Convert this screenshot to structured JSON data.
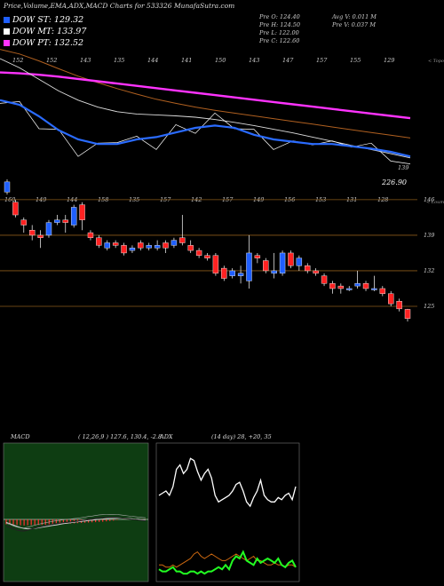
{
  "header": {
    "title": "Price,Volume,EMA,ADX,MACD Charts for 533326  MunafaSutra.com",
    "legend": [
      {
        "label": "DOW ST: 129.32",
        "color": "#1f5fff"
      },
      {
        "label": "DOW MT: 133.97",
        "color": "#ffffff"
      },
      {
        "label": "DOW PT: 132.52",
        "color": "#ff33ff"
      }
    ],
    "stats_col1": [
      "Pre  O: 124.40",
      "Pre  H: 124.50",
      "Pre  L: 122.00",
      "Pre  C: 122.60"
    ],
    "stats_col2": [
      "Avg V: 0.011 M",
      "Pre  V: 0.037 M"
    ]
  },
  "chart_data": [
    {
      "type": "line",
      "name": "ema-panel",
      "top_labels": [
        "152",
        "152",
        "143",
        "135",
        "144",
        "141",
        "150",
        "143",
        "147",
        "157",
        "155",
        "129"
      ],
      "corner_label": "< Topo",
      "bottom_labels": [
        "139",
        "226.90"
      ],
      "ema_magenta": [
        147,
        146.8,
        146.5,
        146.1,
        145.6,
        145.1,
        144.6,
        144.1,
        143.6,
        143.1,
        142.6,
        142.1,
        141.6,
        141.1,
        140.6,
        140.1,
        139.6,
        139.1,
        138.6,
        138.1,
        137.6,
        137.1
      ],
      "ema_brown": [
        152,
        151,
        149.5,
        147.8,
        146.2,
        144.8,
        143.5,
        142.3,
        141.2,
        140.3,
        139.5,
        138.8,
        138.2,
        137.6,
        137,
        136.4,
        135.8,
        135.2,
        134.6,
        134,
        133.4,
        132.8
      ],
      "ema_white_smooth": [
        150,
        148,
        145.5,
        143,
        141,
        139.5,
        138.5,
        138,
        137.8,
        137.6,
        137.3,
        136.8,
        136.2,
        135.5,
        134.7,
        133.9,
        133,
        132.1,
        131.2,
        130.3,
        129.4,
        128.5
      ],
      "ema_blue": [
        141,
        140,
        137.5,
        134.5,
        132.5,
        131.5,
        131.5,
        132.5,
        133,
        134,
        135,
        135.5,
        135,
        133.5,
        132.5,
        132,
        131.5,
        131.5,
        131,
        130.5,
        129.8,
        128.8
      ],
      "price_line": [
        141.5,
        139.5,
        136,
        133.5,
        130,
        130.5,
        133,
        132,
        131.5,
        134.5,
        135,
        137,
        136,
        133.5,
        131.5,
        131,
        132.5,
        131,
        132,
        130.5,
        129,
        126
      ]
    },
    {
      "type": "candlestick",
      "name": "price-panel",
      "top_labels": [
        "160",
        "149",
        "144",
        "158",
        "135",
        "157",
        "142",
        "157",
        "149",
        "156",
        "153",
        "131",
        "128"
      ],
      "corner_label": "< Loum",
      "right_ticks": [
        "146",
        "139",
        "132",
        "125"
      ],
      "ylim": [
        120,
        151
      ],
      "candles": [
        {
          "o": 147.5,
          "c": 149.5,
          "h": 150,
          "l": 147
        },
        {
          "o": 145.5,
          "c": 143,
          "h": 146,
          "l": 142.5
        },
        {
          "o": 142,
          "c": 141,
          "h": 142.5,
          "l": 139.5
        },
        {
          "o": 140,
          "c": 139,
          "h": 141,
          "l": 138
        },
        {
          "o": 139,
          "c": 138.5,
          "h": 140,
          "l": 136.5
        },
        {
          "o": 139,
          "c": 141.5,
          "h": 142,
          "l": 138.5
        },
        {
          "o": 141.5,
          "c": 142,
          "h": 143,
          "l": 141
        },
        {
          "o": 142,
          "c": 141.5,
          "h": 143,
          "l": 139.5
        },
        {
          "o": 141,
          "c": 144.5,
          "h": 145,
          "l": 140.5
        },
        {
          "o": 145,
          "c": 142,
          "h": 145.5,
          "l": 140
        },
        {
          "o": 139.5,
          "c": 138.5,
          "h": 140,
          "l": 138
        },
        {
          "o": 138.5,
          "c": 137,
          "h": 139,
          "l": 136.5
        },
        {
          "o": 136.5,
          "c": 137.5,
          "h": 138,
          "l": 136
        },
        {
          "o": 137.5,
          "c": 137,
          "h": 138,
          "l": 136.5
        },
        {
          "o": 137,
          "c": 135.5,
          "h": 137.5,
          "l": 135
        },
        {
          "o": 136,
          "c": 136.5,
          "h": 137,
          "l": 135.5
        },
        {
          "o": 137.5,
          "c": 136.5,
          "h": 138,
          "l": 136
        },
        {
          "o": 136.5,
          "c": 137,
          "h": 137.5,
          "l": 136
        },
        {
          "o": 136.5,
          "c": 137,
          "h": 138,
          "l": 136
        },
        {
          "o": 137.5,
          "c": 136.5,
          "h": 138,
          "l": 135.5
        },
        {
          "o": 137,
          "c": 138,
          "h": 138.5,
          "l": 136.5
        },
        {
          "o": 138.5,
          "c": 137.5,
          "h": 143,
          "l": 137
        },
        {
          "o": 137,
          "c": 136,
          "h": 138,
          "l": 135.5
        },
        {
          "o": 136,
          "c": 135,
          "h": 136.5,
          "l": 134.5
        },
        {
          "o": 135,
          "c": 134.5,
          "h": 135.5,
          "l": 134
        },
        {
          "o": 135,
          "c": 131.5,
          "h": 135.5,
          "l": 131
        },
        {
          "o": 132.5,
          "c": 130.5,
          "h": 133,
          "l": 130
        },
        {
          "o": 131,
          "c": 132,
          "h": 132.5,
          "l": 130.5
        },
        {
          "o": 131,
          "c": 131.5,
          "h": 133,
          "l": 129.5
        },
        {
          "o": 130,
          "c": 135.5,
          "h": 139,
          "l": 128.5
        },
        {
          "o": 135,
          "c": 134.5,
          "h": 135.5,
          "l": 133.5
        },
        {
          "o": 134,
          "c": 132,
          "h": 134.5,
          "l": 131.5
        },
        {
          "o": 131.5,
          "c": 132,
          "h": 135.5,
          "l": 130.5
        },
        {
          "o": 131.5,
          "c": 135.5,
          "h": 136,
          "l": 131
        },
        {
          "o": 135.5,
          "c": 133,
          "h": 136,
          "l": 132.5
        },
        {
          "o": 133,
          "c": 134.5,
          "h": 135,
          "l": 132
        },
        {
          "o": 133,
          "c": 132,
          "h": 133.5,
          "l": 131.5
        },
        {
          "o": 132,
          "c": 131.5,
          "h": 132.5,
          "l": 131
        },
        {
          "o": 131,
          "c": 129.5,
          "h": 131.5,
          "l": 129
        },
        {
          "o": 129.5,
          "c": 128.5,
          "h": 130,
          "l": 127.5
        },
        {
          "o": 129,
          "c": 128.5,
          "h": 129.5,
          "l": 127.5
        },
        {
          "o": 128.5,
          "c": 128.5,
          "h": 129,
          "l": 128
        },
        {
          "o": 129,
          "c": 129.5,
          "h": 132,
          "l": 128.5
        },
        {
          "o": 129.5,
          "c": 128.5,
          "h": 130,
          "l": 128
        },
        {
          "o": 128.5,
          "c": 128.5,
          "h": 131,
          "l": 128
        },
        {
          "o": 128.5,
          "c": 127.5,
          "h": 129,
          "l": 127
        },
        {
          "o": 127.5,
          "c": 125.5,
          "h": 128,
          "l": 125
        },
        {
          "o": 126,
          "c": 124.5,
          "h": 126.5,
          "l": 124
        },
        {
          "o": 124.4,
          "c": 122.6,
          "h": 124.5,
          "l": 122
        }
      ]
    },
    {
      "type": "bar",
      "name": "macd-panel",
      "label": "MACD",
      "params": "( 12,26,9 ) 127.6,  130.4,  -2.8",
      "ylim": [
        -8,
        20
      ],
      "histogram": [
        -2.5,
        -2.4,
        -2.6,
        -2.8,
        -3.0,
        -3.1,
        -3.0,
        -2.9,
        -2.9,
        -2.8,
        -2.8,
        -2.7,
        -2.6,
        -2.5,
        -2.4,
        -2.3,
        -2.3,
        -2.2,
        -2.1,
        -2.0,
        -1.9,
        -1.8,
        -1.7,
        -1.6,
        -1.5,
        -1.4,
        -1.3,
        -1.2,
        -1.0,
        -0.8,
        -0.6,
        -0.3,
        0.0,
        0.1,
        0.2,
        0.3,
        0.3,
        0.2,
        0.2,
        0.1
      ],
      "macd_line": [
        -3.5,
        -4.0,
        -4.8,
        -5.4,
        -5.8,
        -5.9,
        -5.5,
        -5.0,
        -4.4,
        -4.0,
        -3.6,
        -3.2,
        -2.8,
        -2.5,
        -2.2,
        -1.9,
        -1.7,
        -1.5,
        -1.3,
        -1.1,
        -0.9,
        -0.6,
        -0.3,
        0.0,
        0.2,
        0.5,
        0.8,
        0.9,
        1.0,
        1.1,
        1.1,
        1.0,
        0.8,
        0.6,
        0.3,
        0.1,
        -0.1,
        -0.3,
        -0.5,
        -0.7
      ],
      "signal_line": [
        -1.5,
        -2.2,
        -2.9,
        -3.6,
        -4.2,
        -4.6,
        -4.8,
        -4.8,
        -4.6,
        -4.3,
        -4.0,
        -3.7,
        -3.4,
        -3.1,
        -2.8,
        -2.5,
        -2.2,
        -1.9,
        -1.7,
        -1.4,
        -1.2,
        -1.0,
        -0.8,
        -0.6,
        -0.4,
        -0.2,
        0.0,
        0.2,
        0.4,
        0.5,
        0.6,
        0.7,
        0.7,
        0.6,
        0.5,
        0.4,
        0.2,
        0.1,
        -0.1,
        -0.3
      ]
    },
    {
      "type": "line",
      "name": "adx-panel",
      "label": "ADX",
      "params": "(14 day) 28,  +20,  35",
      "ylim": [
        0,
        60
      ],
      "adx_white": [
        38,
        39,
        40,
        38,
        42,
        50,
        52,
        48,
        50,
        55,
        54,
        49,
        45,
        48,
        50,
        46,
        38,
        35,
        36,
        37,
        38,
        40,
        43,
        44,
        40,
        35,
        33,
        37,
        40,
        45,
        38,
        36,
        35,
        35,
        37,
        36,
        38,
        39,
        36,
        42
      ],
      "plus_di_orange": [
        6,
        6,
        5,
        5,
        6,
        5,
        6,
        7,
        8,
        9,
        11,
        12,
        10,
        9,
        10,
        11,
        10,
        9,
        8,
        8,
        9,
        10,
        11,
        10,
        9,
        8,
        9,
        10,
        8,
        8,
        7,
        6,
        6,
        7,
        6,
        6,
        5,
        6,
        6,
        5
      ],
      "minus_di_green": [
        4,
        3,
        3,
        4,
        5,
        3,
        3,
        2,
        2,
        3,
        3,
        2,
        3,
        2,
        3,
        3,
        4,
        5,
        4,
        6,
        4,
        8,
        10,
        9,
        12,
        8,
        7,
        6,
        9,
        7,
        8,
        9,
        8,
        7,
        9,
        6,
        5,
        7,
        8,
        5
      ]
    }
  ]
}
